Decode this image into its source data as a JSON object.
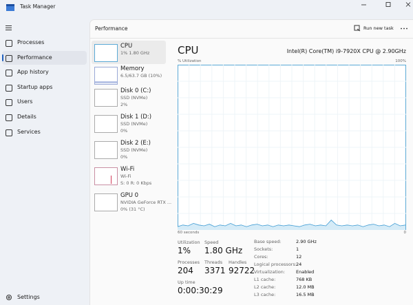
{
  "window": {
    "title": "Task Manager"
  },
  "nav": {
    "items": [
      "Processes",
      "Performance",
      "App history",
      "Startup apps",
      "Users",
      "Details",
      "Services"
    ],
    "selected_index": 1,
    "settings": "Settings"
  },
  "header": {
    "title": "Performance",
    "action": "Run new task"
  },
  "devices": [
    {
      "name": "CPU",
      "details": [
        "1% 1.80 GHz"
      ]
    },
    {
      "name": "Memory",
      "details": [
        "6.5/63.7 GB (10%)"
      ]
    },
    {
      "name": "Disk 0 (C:)",
      "details": [
        "SSD (NVMe)",
        "2%"
      ]
    },
    {
      "name": "Disk 1 (D:)",
      "details": [
        "SSD (NVMe)",
        "0%"
      ]
    },
    {
      "name": "Disk 2 (E:)",
      "details": [
        "SSD (NVMe)",
        "0%"
      ]
    },
    {
      "name": "Wi-Fi",
      "details": [
        "Wi-Fi",
        "S: 0 R: 0 Kbps"
      ]
    },
    {
      "name": "GPU 0",
      "details": [
        "NVIDIA GeForce RTX ...",
        "0% (31 °C)"
      ]
    }
  ],
  "selected_device": 0,
  "panel": {
    "title": "CPU",
    "model": "Intel(R) Core(TM) i9-7920X CPU @ 2.90GHz",
    "y_label": "% Utilization",
    "y_max_label": "100%",
    "x_label": "60 seconds",
    "x_min_label": "0",
    "ylim": [
      0,
      100
    ],
    "history": [
      2,
      3,
      2.5,
      4,
      3,
      2.5,
      3.5,
      2,
      3,
      2.5,
      4,
      2.5,
      3,
      2,
      3,
      3.5,
      2.5,
      3,
      2,
      3,
      2.5,
      3,
      2.5,
      2,
      3,
      3.5,
      2.5,
      3,
      2.5,
      6,
      3,
      2.5,
      3,
      2.5,
      3,
      2,
      3,
      3.5,
      2.5,
      3,
      2,
      4,
      2.5,
      3
    ],
    "stats": [
      {
        "label": "Utilization",
        "value": "1%"
      },
      {
        "label": "Speed",
        "value": "1.80 GHz"
      },
      {
        "label": "Processes",
        "value": "204"
      },
      {
        "label": "Threads",
        "value": "3371"
      },
      {
        "label": "Handles",
        "value": "92722"
      },
      {
        "label": "Up time",
        "value": "0:00:30:29"
      }
    ],
    "specs": [
      {
        "label": "Base speed:",
        "value": "2.90 GHz"
      },
      {
        "label": "Sockets:",
        "value": "1"
      },
      {
        "label": "Cores:",
        "value": "12"
      },
      {
        "label": "Logical processors:",
        "value": "24"
      },
      {
        "label": "Virtualization:",
        "value": "Enabled"
      },
      {
        "label": "L1 cache:",
        "value": "768 KB"
      },
      {
        "label": "L2 cache:",
        "value": "12.0 MB"
      },
      {
        "label": "L3 cache:",
        "value": "16.5 MB"
      }
    ]
  }
}
